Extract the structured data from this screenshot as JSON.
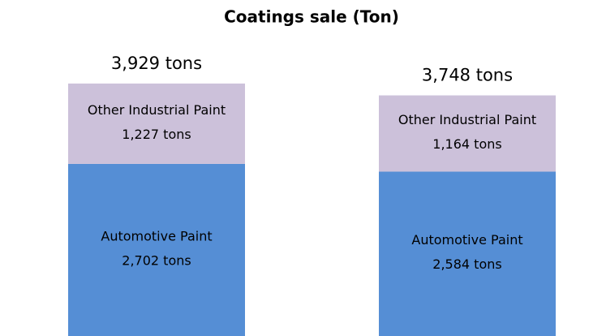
{
  "chart_data": {
    "type": "stacked_bar",
    "title": "Coatings sale (Ton)",
    "categories": [
      null,
      null
    ],
    "series": [
      {
        "name": "Automotive Paint",
        "color": "#558ed5",
        "values": [
          2702,
          2584
        ],
        "value_labels": [
          "2,702 tons",
          "2,584 tons"
        ]
      },
      {
        "name": "Other Industrial Paint",
        "color": "#ccc1da",
        "values": [
          1227,
          1164
        ],
        "value_labels": [
          "1,227 tons",
          "1,164 tons"
        ]
      }
    ],
    "total_labels": [
      "3,929 tons",
      "3,748 tons"
    ]
  }
}
